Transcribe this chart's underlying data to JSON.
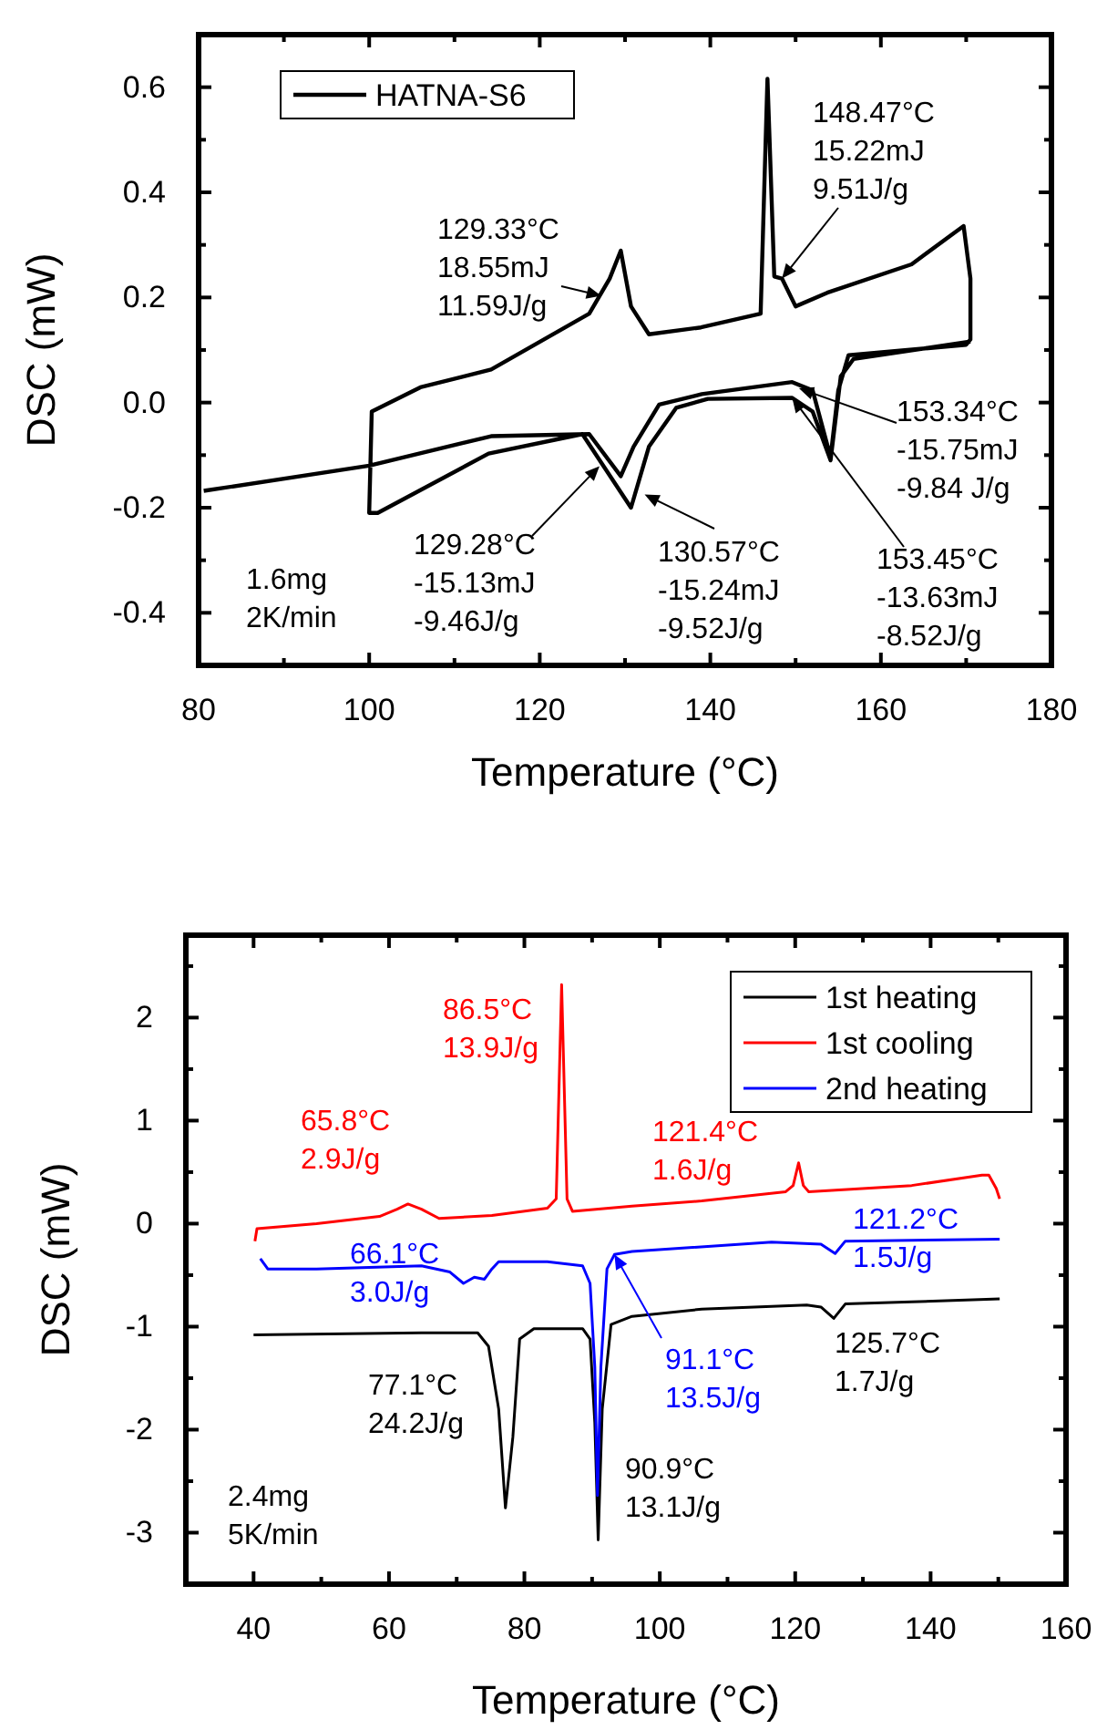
{
  "chart_data": [
    {
      "type": "line",
      "xlabel": "Temperature (°C)",
      "ylabel": "DSC (mW)",
      "xlim": [
        80,
        180
      ],
      "ylim": [
        -0.5,
        0.7
      ],
      "xticks": [
        80,
        {
          "value": 90,
          "label": null
        },
        100,
        {
          "value": 110,
          "label": null
        },
        120,
        {
          "value": 130,
          "label": null
        },
        140,
        {
          "value": 150,
          "label": null
        },
        160,
        {
          "value": 170,
          "label": null
        },
        180
      ],
      "yticks": [
        {
          "value": -0.4,
          "label": "-0.4"
        },
        {
          "value": -0.3,
          "label": null
        },
        {
          "value": -0.2,
          "label": "-0.2"
        },
        {
          "value": -0.1,
          "label": null
        },
        {
          "value": 0,
          "label": "0.0"
        },
        {
          "value": 0.1,
          "label": null
        },
        {
          "value": 0.2,
          "label": "0.2"
        },
        {
          "value": 0.3,
          "label": null
        },
        {
          "value": 0.4,
          "label": "0.4"
        },
        {
          "value": 0.5,
          "label": null
        },
        {
          "value": 0.6,
          "label": "0.6"
        }
      ],
      "legend": "top left",
      "grid": false,
      "marker": "none",
      "line_style": "solid",
      "series": [
        {
          "name": "HATNA-S6",
          "color": "#000000",
          "x": [
            80.6,
            100,
            114.3,
            125.8,
            129.5,
            131,
            134,
            139,
            149.6,
            152,
            154.1,
            155,
            156.2,
            170,
            170.5,
            170.5,
            169.7,
            163.6,
            153.7,
            150,
            148.4,
            147.5,
            146.7,
            145.9,
            138.9,
            132.8,
            130.7,
            129.5,
            128.2,
            125.8,
            114.3,
            106,
            100.3,
            100,
            101,
            114,
            125,
            130.7,
            132.8,
            136,
            139.7,
            149.6,
            152,
            154.1,
            155.3,
            156.8,
            170.5
          ],
          "values": [
            -0.168,
            -0.12,
            -0.064,
            -0.06,
            -0.14,
            -0.084,
            -0.004,
            0.016,
            0.039,
            0.023,
            -0.104,
            0.023,
            0.09,
            0.11,
            0.12,
            0.236,
            0.336,
            0.263,
            0.209,
            0.183,
            0.236,
            0.24,
            0.616,
            0.169,
            0.143,
            0.13,
            0.183,
            0.289,
            0.236,
            0.169,
            0.063,
            0.029,
            -0.017,
            -0.21,
            -0.21,
            -0.097,
            -0.06,
            -0.2,
            -0.084,
            -0.01,
            0.007,
            0.009,
            -0.017,
            -0.11,
            0.05,
            0.083,
            0.116
          ]
        }
      ],
      "annotations": [
        {
          "text": "129.33°C\n18.55mJ\n11.59J/g",
          "x": 127.2,
          "y": 0.203
        },
        {
          "text": "148.47°C\n15.22mJ\n9.51J/g",
          "x": 148.4,
          "y": 0.236
        },
        {
          "text": "153.34°C\n-15.75mJ\n-9.84 J/g",
          "x": 150.4,
          "y": 0.027
        },
        {
          "text": "130.57°C\n-15.24mJ\n-9.52J/g",
          "x": 132.3,
          "y": -0.175
        },
        {
          "text": "129.28°C\n-15.13mJ\n-9.46J/g",
          "x": 127,
          "y": -0.121
        },
        {
          "text": "153.45°C\n-13.63mJ\n-8.52J/g",
          "x": 149.6,
          "y": 0.009
        },
        "1.6mg\n2K/min"
      ]
    },
    {
      "type": "line",
      "xlabel": "Temperature (°C)",
      "ylabel": "DSC (mW)",
      "xlim": [
        30,
        160
      ],
      "ylim": [
        -3.5,
        2.8
      ],
      "xticks": [
        40,
        {
          "value": 50,
          "label": null
        },
        60,
        {
          "value": 70,
          "label": null
        },
        80,
        {
          "value": 90,
          "label": null
        },
        100,
        {
          "value": 110,
          "label": null
        },
        120,
        {
          "value": 130,
          "label": null
        },
        140,
        {
          "value": 150,
          "label": null
        },
        160
      ],
      "yticks": [
        -3,
        {
          "value": -2.5,
          "label": null
        },
        -2,
        {
          "value": -1.5,
          "label": null
        },
        -1,
        {
          "value": -0.5,
          "label": null
        },
        0,
        {
          "value": 0.5,
          "label": null
        },
        1,
        {
          "value": 1.5,
          "label": null
        },
        2,
        {
          "value": 2.5,
          "label": null
        }
      ],
      "legend": "top right",
      "grid": false,
      "marker": "none",
      "line_style": "solid",
      "series": [
        {
          "name": "1st heating",
          "color": "#000000",
          "x": [
            40,
            64.8,
            73.1,
            74.7,
            76.2,
            77.2,
            78.3,
            79.3,
            81.4,
            88.6,
            89.7,
            90.4,
            90.9,
            91.5,
            92.8,
            95.9,
            106.2,
            121.7,
            123.8,
            125.7,
            127.4,
            137.2,
            150.2
          ],
          "values": [
            -1.08,
            -1.06,
            -1.06,
            -1.19,
            -1.8,
            -2.76,
            -2.07,
            -1.12,
            -1.02,
            -1.02,
            -1.12,
            -1.93,
            -3.07,
            -1.8,
            -0.98,
            -0.9,
            -0.83,
            -0.79,
            -0.81,
            -0.92,
            -0.78,
            -0.76,
            -0.73
          ]
        },
        {
          "name": "1st cooling",
          "color": "#ff0000",
          "x": [
            40.2,
            40.5,
            49.3,
            58.6,
            61.2,
            62.8,
            64.8,
            67.4,
            75.2,
            83.4,
            84.7,
            85.5,
            86.3,
            87.1,
            95.9,
            106.2,
            118.6,
            119.7,
            120.5,
            121.2,
            122,
            137.2,
            147.6,
            148.6,
            149.7,
            150.2
          ],
          "values": [
            -0.17,
            -0.05,
            0,
            0.07,
            0.14,
            0.19,
            0.14,
            0.05,
            0.08,
            0.15,
            0.24,
            2.32,
            0.24,
            0.12,
            0.17,
            0.22,
            0.31,
            0.37,
            0.59,
            0.37,
            0.31,
            0.37,
            0.47,
            0.47,
            0.34,
            0.24
          ]
        },
        {
          "name": "2nd heating",
          "color": "#0000ff",
          "x": [
            41,
            42.1,
            49.3,
            64.8,
            69,
            71,
            72.6,
            74.1,
            75.2,
            76.2,
            83.4,
            88.6,
            89.7,
            90.4,
            90.8,
            91.3,
            92.2,
            93.3,
            95.9,
            116.5,
            123.8,
            125.9,
            127.4,
            150.2
          ],
          "values": [
            -0.34,
            -0.44,
            -0.44,
            -0.41,
            -0.47,
            -0.58,
            -0.52,
            -0.54,
            -0.44,
            -0.37,
            -0.37,
            -0.41,
            -0.58,
            -1.39,
            -2.64,
            -1.39,
            -0.44,
            -0.3,
            -0.27,
            -0.18,
            -0.2,
            -0.29,
            -0.17,
            -0.15
          ]
        }
      ],
      "annotations": [
        "86.5°C\n13.9J/g",
        "65.8°C\n2.9J/g",
        "121.4°C\n1.6J/g",
        "121.2°C\n1.5J/g",
        "66.1°C\n3.0J/g",
        {
          "text": "91.1°C\n13.5J/g",
          "x": 93.3,
          "y": -0.3
        },
        "125.7°C\n1.7J/g",
        "77.1°C\n24.2J/g",
        "90.9°C\n13.1J/g",
        "2.4mg\n5K/min"
      ]
    }
  ]
}
